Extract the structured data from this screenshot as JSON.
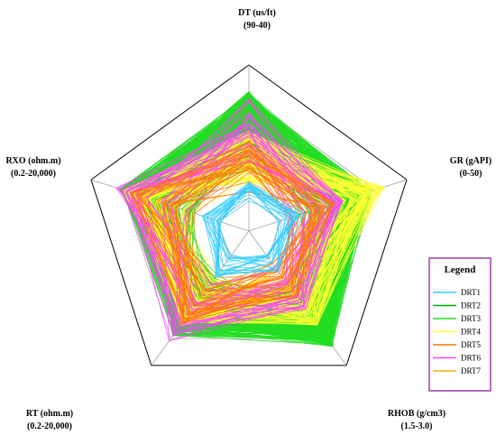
{
  "chart_data": {
    "type": "radar",
    "axes": [
      {
        "name": "DT (us/ft)",
        "range_label": "(90-40)",
        "range": [
          90,
          40
        ]
      },
      {
        "name": "GR (gAPI)",
        "range_label": "(0-50)",
        "range": [
          0,
          50
        ]
      },
      {
        "name": "RHOB (g/cm3)",
        "range_label": "(1.5-3.0)",
        "range": [
          1.5,
          3.0
        ]
      },
      {
        "name": "RT (ohm.m)",
        "range_label": "(0.2-20,000)",
        "range": [
          0.2,
          20000
        ],
        "scale": "log"
      },
      {
        "name": "RXO (ohm.m)",
        "range_label": "(0.2-20,000)",
        "range": [
          0.2,
          20000
        ],
        "scale": "log"
      }
    ],
    "grid_levels": 5,
    "legend": {
      "title": "Legend",
      "placement": "right",
      "entries": [
        {
          "name": "DRT1",
          "color": "#33ccff"
        },
        {
          "name": "DRT2",
          "color": "#00aa00"
        },
        {
          "name": "DRT3",
          "color": "#22dd22"
        },
        {
          "name": "DRT4",
          "color": "#ffff33"
        },
        {
          "name": "DRT5",
          "color": "#ff7700"
        },
        {
          "name": "DRT6",
          "color": "#ff44ff"
        },
        {
          "name": "DRT7",
          "color": "#ffaa00"
        }
      ]
    },
    "series_envelopes": [
      {
        "name": "DRT3",
        "values": [
          0.84,
          0.78,
          0.86,
          0.78,
          0.82
        ]
      },
      {
        "name": "DRT4",
        "values": [
          0.6,
          0.86,
          0.7,
          0.7,
          0.8
        ]
      },
      {
        "name": "DRT6",
        "values": [
          0.8,
          0.6,
          0.6,
          0.82,
          0.84
        ]
      },
      {
        "name": "DRT5",
        "values": [
          0.55,
          0.55,
          0.5,
          0.7,
          0.75
        ]
      },
      {
        "name": "DRT1",
        "values": [
          0.3,
          0.35,
          0.3,
          0.35,
          0.3
        ]
      }
    ]
  }
}
